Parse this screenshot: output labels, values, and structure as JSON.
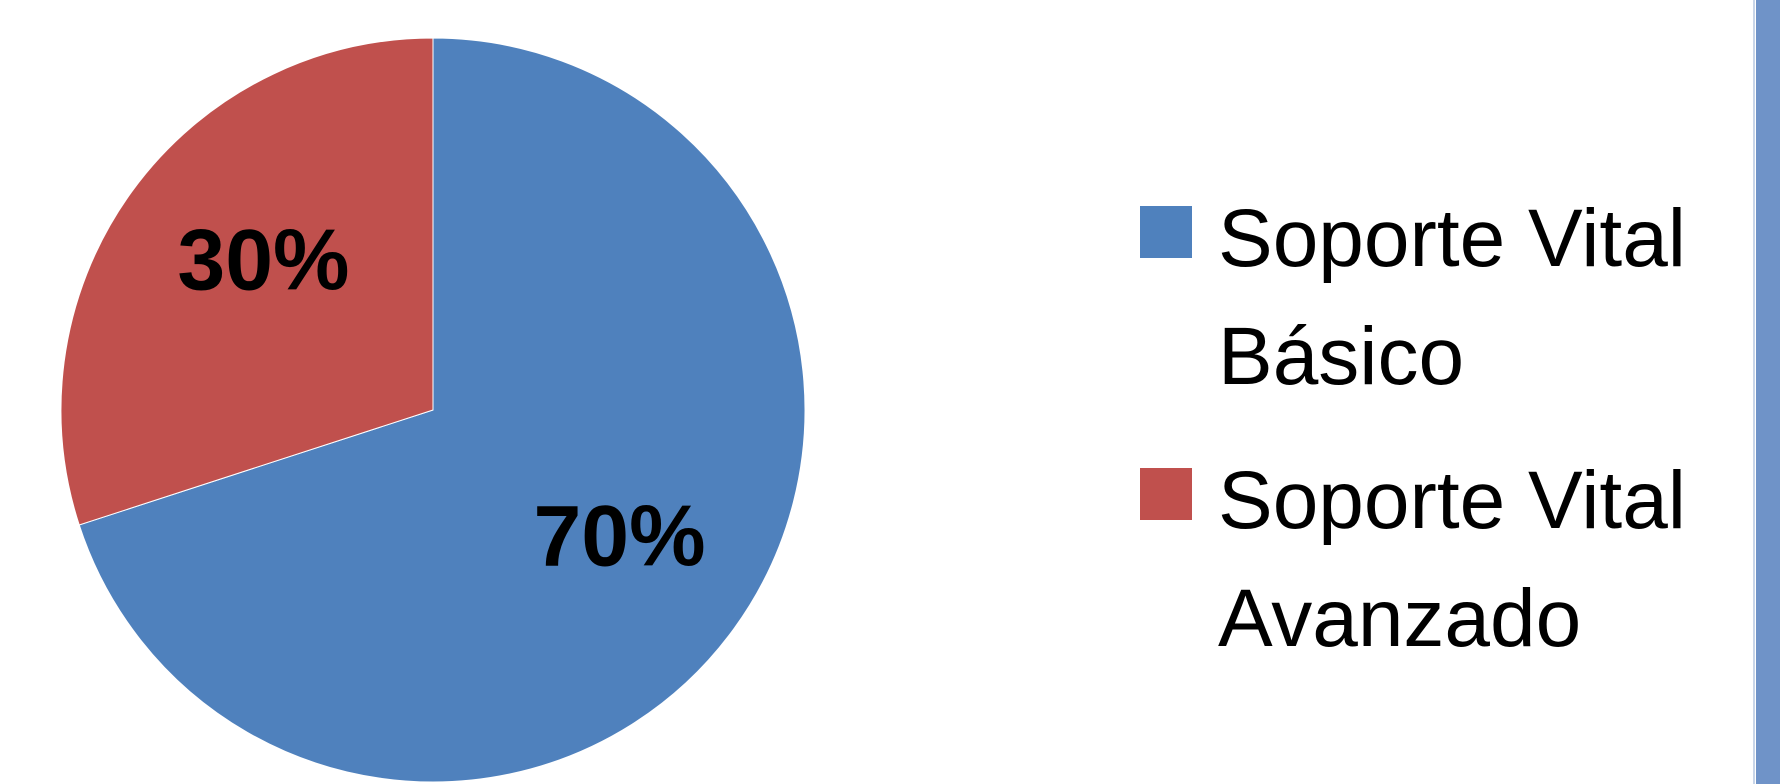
{
  "chart_data": {
    "type": "pie",
    "title": "",
    "slices": [
      {
        "name": "Soporte Vital Básico",
        "value": 70,
        "label": "70%",
        "color": "#4f81bd"
      },
      {
        "name": "Soporte Vital Avanzado",
        "value": 30,
        "label": "30%",
        "color": "#c0504d"
      }
    ],
    "start_angle": "12 o'clock",
    "direction": "clockwise",
    "legend": {
      "position": "right",
      "items": [
        {
          "line1": "Soporte Vital",
          "line2": "Básico",
          "color": "#4f81bd"
        },
        {
          "line1": "Soporte Vital",
          "line2": "Avanzado",
          "color": "#c0504d"
        }
      ]
    }
  },
  "colors": {
    "background": "#ffffff",
    "side_bar": "#6f93c8"
  }
}
